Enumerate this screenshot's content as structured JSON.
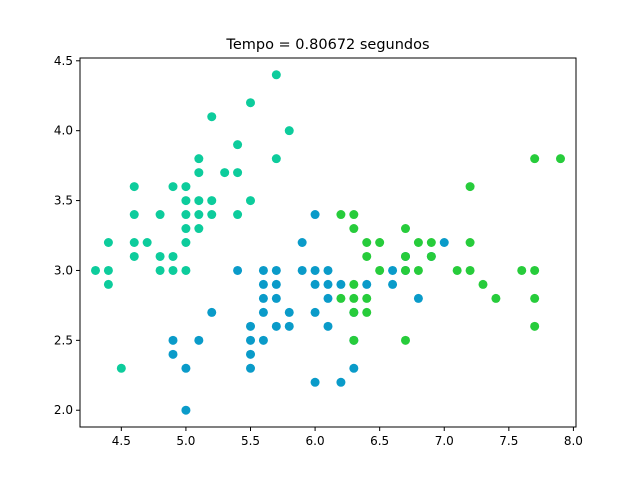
{
  "chart_data": {
    "type": "scatter",
    "title": "Tempo = 0.80672 segundos",
    "xlabel": "",
    "ylabel": "",
    "xlim": [
      4.18,
      8.02
    ],
    "ylim": [
      1.88,
      4.52
    ],
    "xticks": [
      4.5,
      5.0,
      5.5,
      6.0,
      6.5,
      7.0,
      7.5,
      8.0
    ],
    "xtick_labels": [
      "4.5",
      "5.0",
      "5.5",
      "6.0",
      "6.5",
      "7.0",
      "7.5",
      "8.0"
    ],
    "yticks": [
      2.0,
      2.5,
      3.0,
      3.5,
      4.0,
      4.5
    ],
    "ytick_labels": [
      "2.0",
      "2.5",
      "3.0",
      "3.5",
      "4.0",
      "4.5"
    ],
    "grid": false,
    "legend": "none",
    "series": [
      {
        "color": "#0dcc9c",
        "points": [
          [
            4.3,
            3.0
          ],
          [
            4.4,
            2.9
          ],
          [
            4.4,
            3.0
          ],
          [
            4.4,
            3.2
          ],
          [
            4.5,
            2.3
          ],
          [
            4.6,
            3.1
          ],
          [
            4.6,
            3.2
          ],
          [
            4.6,
            3.4
          ],
          [
            4.6,
            3.6
          ],
          [
            4.7,
            3.2
          ],
          [
            4.8,
            3.0
          ],
          [
            4.8,
            3.1
          ],
          [
            4.8,
            3.4
          ],
          [
            4.9,
            3.0
          ],
          [
            4.9,
            3.1
          ],
          [
            4.9,
            3.6
          ],
          [
            5.0,
            3.0
          ],
          [
            5.0,
            3.2
          ],
          [
            5.0,
            3.3
          ],
          [
            5.0,
            3.4
          ],
          [
            5.0,
            3.5
          ],
          [
            5.0,
            3.6
          ],
          [
            5.1,
            3.3
          ],
          [
            5.1,
            3.4
          ],
          [
            5.1,
            3.5
          ],
          [
            5.1,
            3.7
          ],
          [
            5.1,
            3.8
          ],
          [
            5.2,
            3.4
          ],
          [
            5.2,
            3.5
          ],
          [
            5.2,
            4.1
          ],
          [
            5.3,
            3.7
          ],
          [
            5.4,
            3.4
          ],
          [
            5.4,
            3.7
          ],
          [
            5.4,
            3.9
          ],
          [
            5.5,
            3.5
          ],
          [
            5.5,
            4.2
          ],
          [
            5.7,
            3.8
          ],
          [
            5.7,
            4.4
          ],
          [
            5.8,
            4.0
          ]
        ]
      },
      {
        "color": "#0a9bc9",
        "points": [
          [
            4.9,
            2.4
          ],
          [
            4.9,
            2.5
          ],
          [
            5.0,
            2.0
          ],
          [
            5.0,
            2.3
          ],
          [
            5.1,
            2.5
          ],
          [
            5.2,
            2.7
          ],
          [
            5.4,
            3.0
          ],
          [
            5.5,
            2.3
          ],
          [
            5.5,
            2.4
          ],
          [
            5.5,
            2.5
          ],
          [
            5.5,
            2.6
          ],
          [
            5.6,
            2.5
          ],
          [
            5.6,
            2.7
          ],
          [
            5.6,
            2.8
          ],
          [
            5.6,
            2.9
          ],
          [
            5.6,
            3.0
          ],
          [
            5.7,
            2.6
          ],
          [
            5.7,
            2.8
          ],
          [
            5.7,
            2.9
          ],
          [
            5.7,
            3.0
          ],
          [
            5.8,
            2.6
          ],
          [
            5.8,
            2.7
          ],
          [
            5.9,
            3.0
          ],
          [
            5.9,
            3.2
          ],
          [
            6.0,
            2.2
          ],
          [
            6.0,
            2.7
          ],
          [
            6.0,
            2.9
          ],
          [
            6.0,
            3.0
          ],
          [
            6.0,
            3.4
          ],
          [
            6.1,
            2.6
          ],
          [
            6.1,
            2.8
          ],
          [
            6.1,
            2.9
          ],
          [
            6.1,
            3.0
          ],
          [
            6.2,
            2.2
          ],
          [
            6.2,
            2.9
          ],
          [
            6.3,
            2.3
          ],
          [
            6.3,
            2.5
          ],
          [
            6.3,
            2.7
          ],
          [
            6.4,
            2.9
          ],
          [
            6.6,
            2.9
          ],
          [
            6.6,
            3.0
          ],
          [
            6.7,
            3.0
          ],
          [
            6.7,
            3.1
          ],
          [
            6.8,
            2.8
          ],
          [
            6.9,
            3.1
          ],
          [
            7.0,
            3.2
          ]
        ]
      },
      {
        "color": "#27cc3b",
        "points": [
          [
            6.2,
            2.8
          ],
          [
            6.2,
            3.4
          ],
          [
            6.3,
            2.5
          ],
          [
            6.3,
            2.7
          ],
          [
            6.3,
            2.8
          ],
          [
            6.3,
            2.9
          ],
          [
            6.3,
            3.3
          ],
          [
            6.3,
            3.4
          ],
          [
            6.4,
            2.7
          ],
          [
            6.4,
            2.8
          ],
          [
            6.4,
            3.1
          ],
          [
            6.4,
            3.2
          ],
          [
            6.5,
            3.0
          ],
          [
            6.5,
            3.2
          ],
          [
            6.7,
            2.5
          ],
          [
            6.7,
            3.0
          ],
          [
            6.7,
            3.1
          ],
          [
            6.7,
            3.3
          ],
          [
            6.8,
            3.0
          ],
          [
            6.8,
            3.2
          ],
          [
            6.9,
            3.1
          ],
          [
            6.9,
            3.2
          ],
          [
            7.1,
            3.0
          ],
          [
            7.2,
            3.0
          ],
          [
            7.2,
            3.2
          ],
          [
            7.2,
            3.6
          ],
          [
            7.3,
            2.9
          ],
          [
            7.4,
            2.8
          ],
          [
            7.6,
            3.0
          ],
          [
            7.7,
            2.6
          ],
          [
            7.7,
            2.8
          ],
          [
            7.7,
            3.0
          ],
          [
            7.7,
            3.8
          ],
          [
            7.9,
            3.8
          ]
        ]
      }
    ]
  }
}
